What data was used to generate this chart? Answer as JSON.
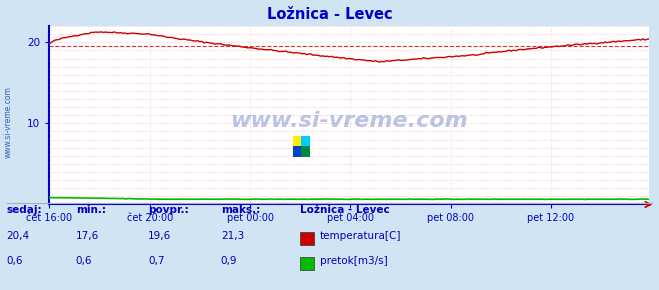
{
  "title": "Ložnica - Levec",
  "title_color": "#0000cc",
  "bg_color": "#d0e4f4",
  "plot_bg_color": "#ffffff",
  "grid_color_h": "#ffaaaa",
  "grid_color_v": "#ffcccc",
  "x_labels": [
    "čet 16:00",
    "čet 20:00",
    "pet 00:00",
    "pet 04:00",
    "pet 08:00",
    "pet 12:00"
  ],
  "x_ticks_pos": [
    0,
    48,
    96,
    144,
    192,
    240
  ],
  "total_points": 288,
  "ylim": [
    0,
    22
  ],
  "yticks": [
    10,
    20
  ],
  "avg_temp": 19.6,
  "min_temp": 17.6,
  "max_temp": 21.3,
  "sedaj_temp": 20.4,
  "sedaj_flow": 0.6,
  "min_flow": 0.6,
  "avg_flow": 0.7,
  "max_flow": 0.9,
  "temp_color": "#cc0000",
  "flow_color": "#00bb00",
  "watermark_color": "#1a44aa",
  "axis_color": "#0000cc",
  "tick_color": "#0000cc",
  "left_label": "www.si-vreme.com",
  "legend_title": "Ložnica - Levec",
  "legend_items": [
    "temperatura[C]",
    "pretok[m3/s]"
  ],
  "legend_colors": [
    "#cc0000",
    "#00bb00"
  ],
  "stats_labels": [
    "sedaj:",
    "min.:",
    "povpr.:",
    "maks.:"
  ],
  "stats_color": "#0000bb",
  "arrow_color": "#cc0000"
}
